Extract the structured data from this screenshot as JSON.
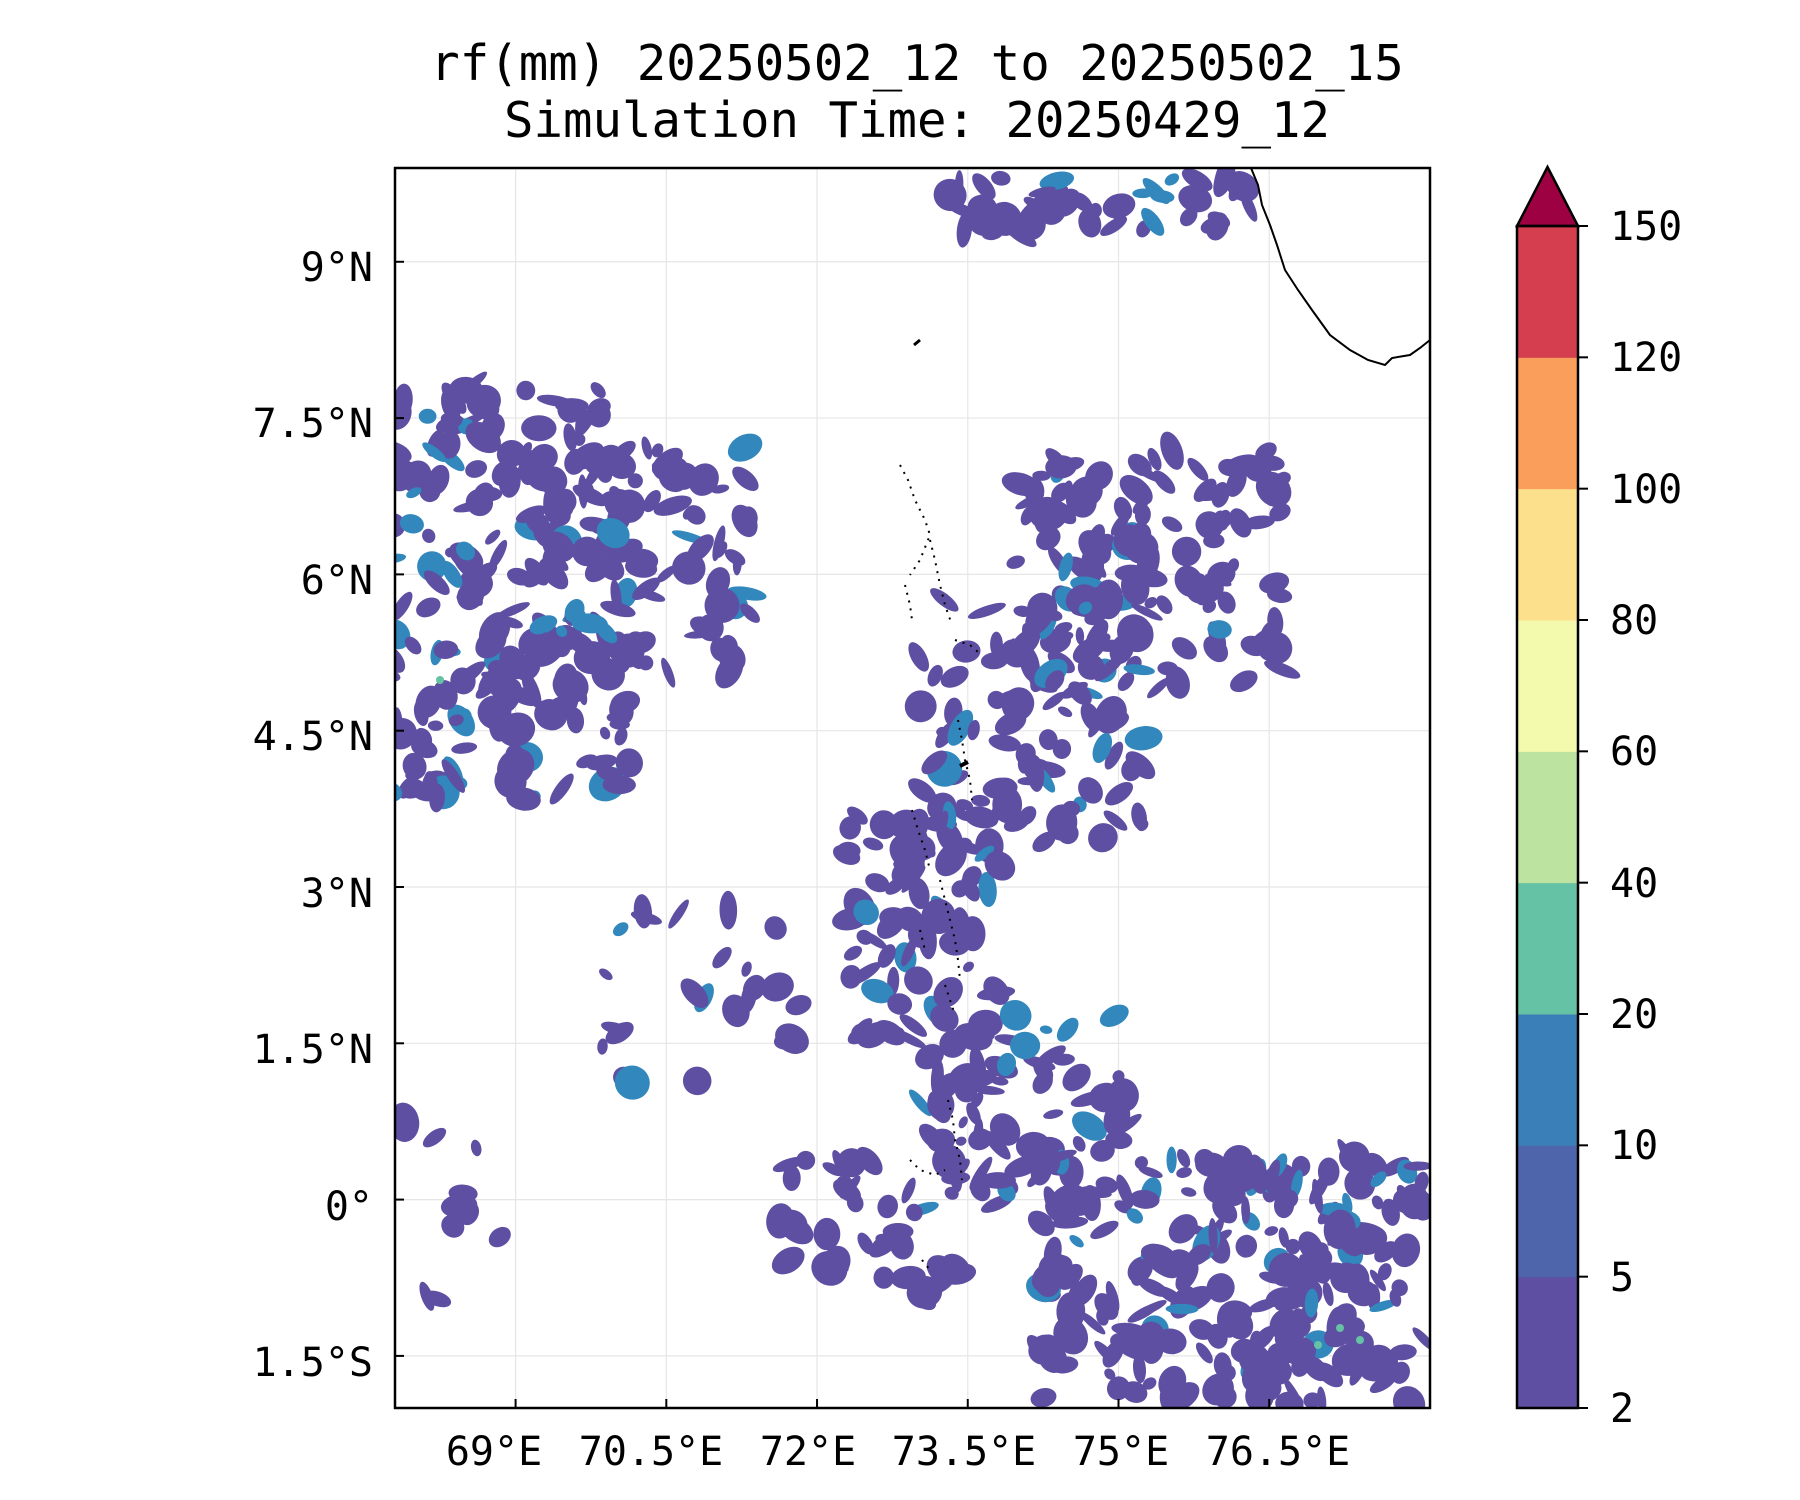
{
  "title": {
    "line1": "rf(mm) 20250502_12 to 20250502_15",
    "line2": "Simulation Time: 20250429_12"
  },
  "map": {
    "lon_range": [
      67.8,
      78.1
    ],
    "lat_range": [
      -2.0,
      9.9
    ],
    "lon_ticks": [
      {
        "value": 69.0,
        "label": "69°E"
      },
      {
        "value": 70.5,
        "label": "70.5°E"
      },
      {
        "value": 72.0,
        "label": "72°E"
      },
      {
        "value": 73.5,
        "label": "73.5°E"
      },
      {
        "value": 75.0,
        "label": "75°E"
      },
      {
        "value": 76.5,
        "label": "76.5°E"
      }
    ],
    "lat_ticks": [
      {
        "value": 9.0,
        "label": "9°N"
      },
      {
        "value": 7.5,
        "label": "7.5°N"
      },
      {
        "value": 6.0,
        "label": "6°N"
      },
      {
        "value": 4.5,
        "label": "4.5°N"
      },
      {
        "value": 3.0,
        "label": "3°N"
      },
      {
        "value": 1.5,
        "label": "1.5°N"
      },
      {
        "value": 0.0,
        "label": "0°"
      },
      {
        "value": -1.5,
        "label": "1.5°S"
      }
    ],
    "gridlines": true,
    "rain_color_main": "#5e4fa2",
    "rain_color_heavy": "#3288bd",
    "rain_color_peak": "#66c2a5",
    "coastline_color": "#000000"
  },
  "colorbar": {
    "label": "",
    "levels": [
      "2",
      "5",
      "10",
      "20",
      "40",
      "60",
      "80",
      "100",
      "120",
      "150"
    ],
    "colors": [
      "#5e4fa2",
      "#4e65ac",
      "#3a7fb8",
      "#66c2a5",
      "#bde3a0",
      "#f4faad",
      "#fde08b",
      "#f99f5b",
      "#d53e4f"
    ],
    "extend_color": "#9e0142",
    "extend": "max"
  }
}
